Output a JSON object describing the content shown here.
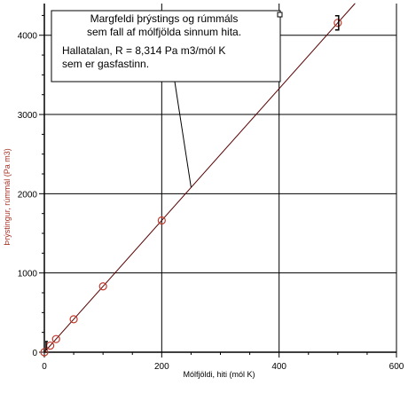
{
  "chart_data": {
    "type": "scatter",
    "xlabel": "Mólfjöldi, hiti (mól K)",
    "ylabel": "Þrýstingur, rúmmál (Pa m3)",
    "xlim": [
      0,
      600
    ],
    "ylim": [
      0,
      4400
    ],
    "x_ticks": [
      0,
      200,
      400,
      600
    ],
    "y_ticks": [
      0,
      1000,
      2000,
      3000,
      4000
    ],
    "grid": true,
    "series": [
      {
        "marker": "circle",
        "color": "#c0392b",
        "x": [
          0,
          10,
          20,
          50,
          100,
          200,
          500
        ],
        "y": [
          0,
          83,
          166,
          416,
          831,
          1663,
          4157
        ]
      }
    ],
    "fit_line": {
      "slope": 8.314,
      "intercept": 0,
      "color": "#5a0000"
    },
    "annotation": {
      "lines": [
        "Margfeldi þrýstings og rúmmáls",
        "sem fall af mólfjölda sinnum hita.",
        "Hallatalan, R =  8,314 Pa m3/mól K",
        "sem er gasfastinn."
      ],
      "pointer_to": {
        "x": 250,
        "y": 2080
      }
    }
  }
}
